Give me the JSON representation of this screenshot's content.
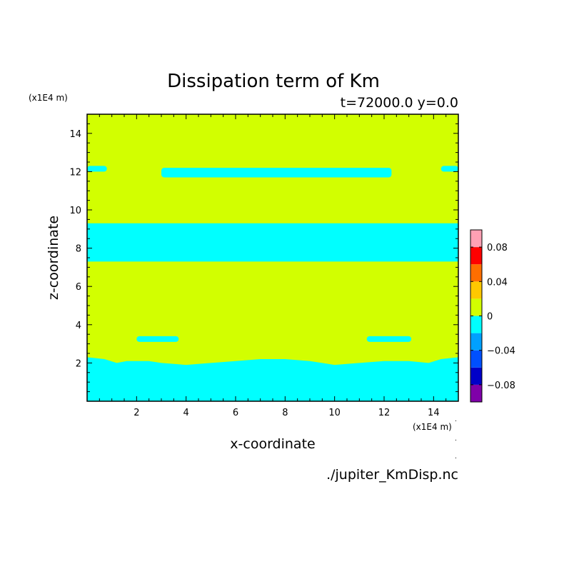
{
  "chart_data": {
    "type": "heatmap",
    "title": "Dissipation term of Km",
    "subtitle": "t=72000.0 y=0.0",
    "xlabel": "x-coordinate",
    "ylabel": "z-coordinate",
    "x_unit": "(x1E4 m)",
    "y_unit": "(x1E4 m)",
    "source_file": "./jupiter_KmDisp.nc",
    "xlim": [
      0,
      15
    ],
    "ylim": [
      0,
      15
    ],
    "x_ticks": [
      2,
      4,
      6,
      8,
      10,
      12,
      14
    ],
    "y_ticks": [
      2,
      4,
      6,
      8,
      10,
      12,
      14
    ],
    "grid": false,
    "legend_position": "right",
    "colorbar": {
      "levels": [
        -0.1,
        -0.08,
        -0.06,
        -0.04,
        -0.02,
        0,
        0.02,
        0.04,
        0.06,
        0.08,
        0.1
      ],
      "colors": [
        "#7f00a9",
        "#0000c8",
        "#0050ff",
        "#00a0ff",
        "#00ffff",
        "#d2ff00",
        "#ffc800",
        "#ff6e00",
        "#ff0000",
        "#ffa0b4"
      ],
      "tick_labels": [
        {
          "value": 0.08,
          "label": "0.08"
        },
        {
          "value": 0.04,
          "label": "0.04"
        },
        {
          "value": 0,
          "label": "0"
        },
        {
          "value": -0.04,
          "label": "−0.04"
        },
        {
          "value": -0.08,
          "label": "−0.08"
        }
      ]
    },
    "background_level": "0 to 0.02",
    "regions": [
      {
        "level": "-0.02 to 0",
        "z_bottom": 0,
        "top": [
          [
            0,
            2.3
          ],
          [
            0.7,
            2.2
          ],
          [
            1.2,
            2.0
          ],
          [
            1.6,
            2.1
          ],
          [
            2.5,
            2.1
          ],
          [
            3.0,
            2.0
          ],
          [
            4.0,
            1.9
          ],
          [
            5.0,
            2.0
          ],
          [
            6.0,
            2.1
          ],
          [
            7.0,
            2.2
          ],
          [
            8.0,
            2.2
          ],
          [
            9.0,
            2.1
          ],
          [
            10.0,
            1.9
          ],
          [
            11.0,
            2.0
          ],
          [
            12.0,
            2.1
          ],
          [
            13.0,
            2.1
          ],
          [
            13.8,
            2.0
          ],
          [
            14.3,
            2.2
          ],
          [
            15,
            2.3
          ]
        ]
      },
      {
        "level": "-0.02 to 0",
        "z_bottom": 7.3,
        "top_z": 9.3
      },
      {
        "level": "-0.02 to 0",
        "x_range": [
          3.0,
          12.3
        ],
        "z_range": [
          11.7,
          12.2
        ]
      },
      {
        "level": "-0.02 to 0",
        "x_range": [
          0,
          0.8
        ],
        "z_range": [
          12.0,
          12.3
        ]
      },
      {
        "level": "-0.02 to 0",
        "x_range": [
          14.3,
          15
        ],
        "z_range": [
          12.0,
          12.3
        ]
      },
      {
        "level": "-0.02 to 0",
        "x_range": [
          2.0,
          3.7
        ],
        "z_range": [
          3.1,
          3.4
        ]
      },
      {
        "level": "-0.02 to 0",
        "x_range": [
          11.3,
          13.1
        ],
        "z_range": [
          3.1,
          3.4
        ]
      }
    ]
  }
}
